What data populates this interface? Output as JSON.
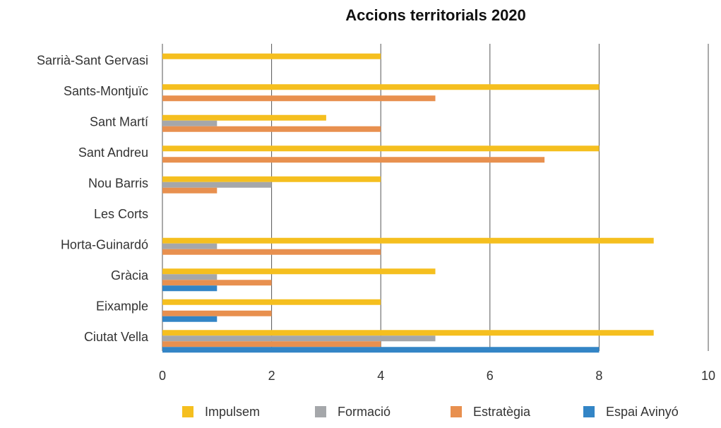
{
  "chart_data": {
    "type": "bar",
    "orientation": "horizontal",
    "title": "Accions territorials 2020",
    "categories": [
      "Sarrià-Sant Gervasi",
      "Sants-Montjuïc",
      "Sant Martí",
      "Sant Andreu",
      "Nou Barris",
      "Les Corts",
      "Horta-Guinardó",
      "Gràcia",
      "Eixample",
      "Ciutat Vella"
    ],
    "series": [
      {
        "name": "Impulsem",
        "color": "#f5bf1f",
        "values": [
          4,
          8,
          3,
          8,
          4,
          0,
          9,
          5,
          4,
          9
        ]
      },
      {
        "name": "Formació",
        "color": "#a5a7aa",
        "values": [
          0,
          0,
          1,
          0,
          2,
          0,
          1,
          1,
          0,
          5
        ]
      },
      {
        "name": "Estratègia",
        "color": "#e8904f",
        "values": [
          0,
          5,
          4,
          7,
          1,
          0,
          4,
          2,
          2,
          4
        ]
      },
      {
        "name": "Espai Avinyó",
        "color": "#3385c6",
        "values": [
          0,
          0,
          0,
          0,
          0,
          0,
          0,
          1,
          1,
          8
        ]
      }
    ],
    "xlim": [
      0,
      10
    ],
    "xticks": [
      0,
      2,
      4,
      6,
      8,
      10
    ],
    "grid": true,
    "legend": "bottom"
  }
}
